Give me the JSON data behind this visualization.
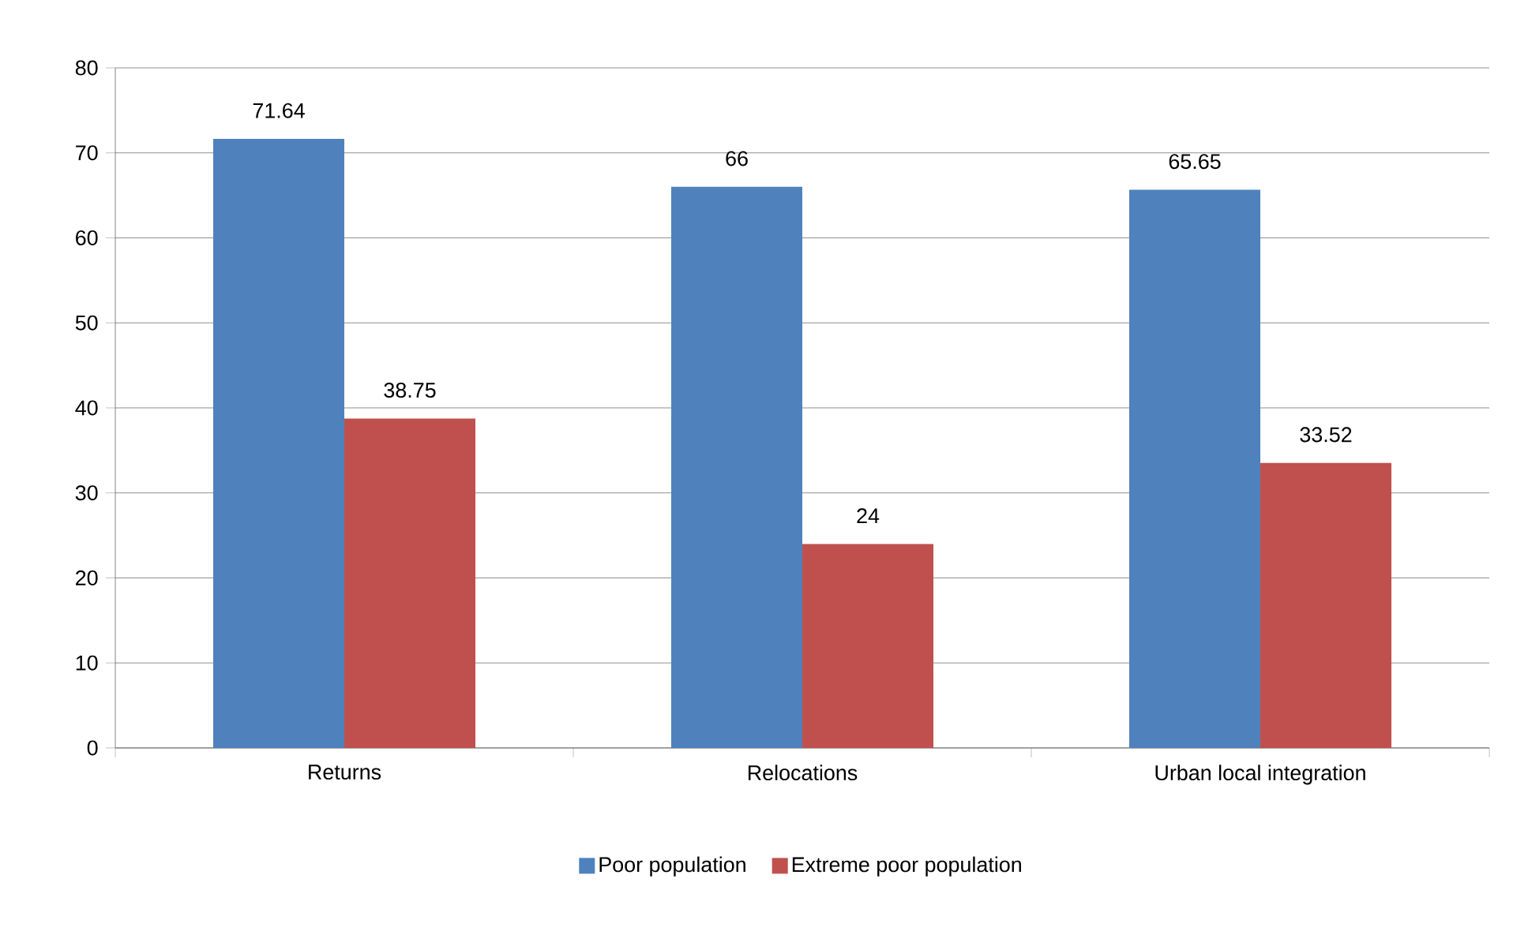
{
  "chart_data": {
    "type": "bar",
    "categories": [
      "Returns",
      "Relocations",
      "Urban local integration"
    ],
    "series": [
      {
        "name": "Poor population",
        "color": "#4f81bd",
        "values": [
          71.64,
          66,
          65.65
        ]
      },
      {
        "name": "Extreme poor population",
        "color": "#c0504d",
        "values": [
          38.75,
          24,
          33.52
        ]
      }
    ],
    "ylim": [
      0,
      80
    ],
    "yticks": [
      0,
      10,
      20,
      30,
      40,
      50,
      60,
      70,
      80
    ],
    "grid": "y",
    "legend": "bottom",
    "data_labels": true
  }
}
